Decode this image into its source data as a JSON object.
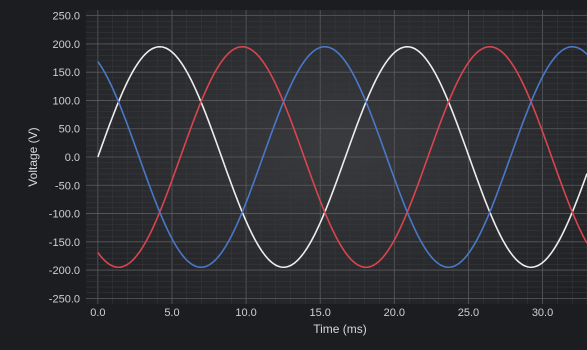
{
  "chart_data": {
    "type": "line",
    "title": "",
    "xlabel": "Time (ms)",
    "ylabel": "Voltage (V)",
    "xlim": [
      -0.8,
      33.0
    ],
    "ylim": [
      -260,
      260
    ],
    "x_ticks": [
      "0.0",
      "5.0",
      "10.0",
      "15.0",
      "20.0",
      "25.0",
      "30.0"
    ],
    "x_tick_values": [
      0,
      5,
      10,
      15,
      20,
      25,
      30
    ],
    "y_ticks": [
      "250.0",
      "200.0",
      "150.0",
      "100.0",
      "50.0",
      "0.0",
      "-50.0",
      "-100.0",
      "-150.0",
      "-200.0",
      "-250.0"
    ],
    "y_tick_values": [
      250,
      200,
      150,
      100,
      50,
      0,
      -50,
      -100,
      -150,
      -200,
      -250
    ],
    "grid": true,
    "legend": "none",
    "x_range": [
      0,
      33.0
    ],
    "series": [
      {
        "color": "#ededed",
        "amplitude": 195,
        "period_ms": 16.7,
        "phase_deg": 0,
        "values_note": ""
      },
      {
        "color": "#d9444f",
        "amplitude": 195,
        "period_ms": 16.7,
        "phase_deg": -120,
        "values_note": ""
      },
      {
        "color": "#4a78c8",
        "amplitude": 195,
        "period_ms": 16.7,
        "phase_deg": 120,
        "values_note": ""
      }
    ]
  }
}
